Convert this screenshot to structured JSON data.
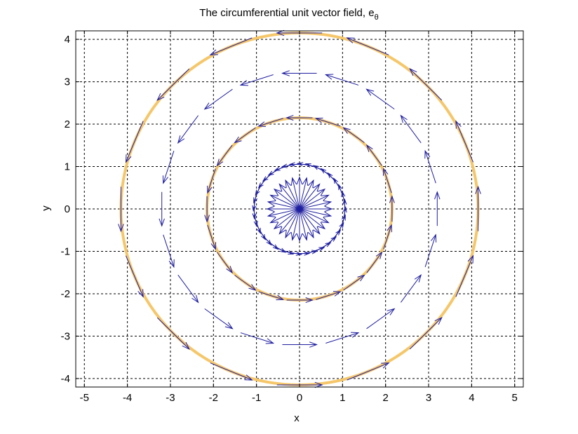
{
  "chart_data": {
    "type": "quiver",
    "title": "The circumferential unit vector field, e",
    "title_subscript": "θ",
    "xlabel": "x",
    "ylabel": "y",
    "xlim": [
      -5.2,
      5.2
    ],
    "ylim": [
      -4.2,
      4.2
    ],
    "xticks": [
      -5,
      -4,
      -3,
      -2,
      -1,
      0,
      1,
      2,
      3,
      4,
      5
    ],
    "yticks": [
      -4,
      -3,
      -2,
      -1,
      0,
      1,
      2,
      3,
      4
    ],
    "xtick_labels": [
      "-5",
      "-4",
      "-3",
      "-2",
      "-1",
      "0",
      "1",
      "2",
      "3",
      "4",
      "5"
    ],
    "ytick_labels": [
      "-4",
      "-3",
      "-2",
      "-1",
      "0",
      "1",
      "2",
      "3",
      "4"
    ],
    "grid": true,
    "grid_style": "dashed",
    "vector_color": "#1f1fa0",
    "circle_color": "#f5c76a",
    "circles": [
      {
        "cx": 0,
        "cy": 0,
        "r": 2.15
      },
      {
        "cx": 0,
        "cy": 0,
        "r": 4.15
      }
    ],
    "vector_rings": [
      {
        "radius": 0,
        "count": 28,
        "arrow_length": 0.75,
        "direction": "radial-spokes"
      },
      {
        "radius": 1.05,
        "count": 36,
        "arrow_length": 0.45,
        "direction": "counterclockwise"
      },
      {
        "radius": 2.15,
        "count": 20,
        "arrow_length": 0.6,
        "direction": "counterclockwise"
      },
      {
        "radius": 3.2,
        "count": 20,
        "arrow_length": 0.8,
        "direction": "counterclockwise"
      },
      {
        "radius": 4.15,
        "count": 16,
        "arrow_length": 1.05,
        "direction": "counterclockwise"
      }
    ]
  }
}
